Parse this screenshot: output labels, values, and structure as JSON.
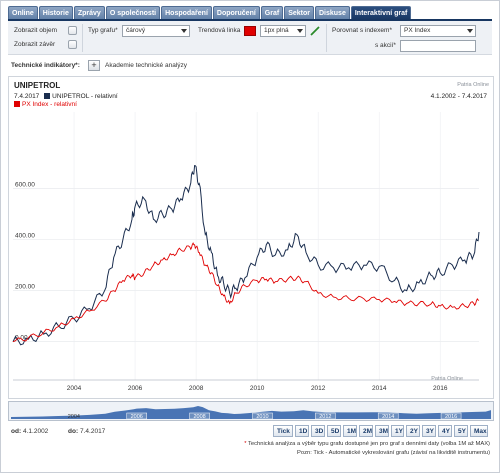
{
  "tabs": [
    {
      "label": "Online"
    },
    {
      "label": "Historie"
    },
    {
      "label": "Zprávy"
    },
    {
      "label": "O společnosti"
    },
    {
      "label": "Hospodaření"
    },
    {
      "label": "Doporučení"
    },
    {
      "label": "Graf"
    },
    {
      "label": "Sektor"
    },
    {
      "label": "Diskuse"
    },
    {
      "label": "Interaktivní graf"
    }
  ],
  "controls": {
    "show_volume_label": "Zobrazit objem",
    "show_close_label": "Zobrazit závěr",
    "chart_type_label": "Typ grafu*",
    "chart_type_value": "čárový",
    "trend_line_label": "Trendová linka",
    "trend_line_width": "1px plná",
    "compare_index_label": "Porovnat s indexem*",
    "compare_index_value": "PX Index",
    "compare_stock_label": "s akcií*",
    "compare_stock_value": ""
  },
  "tech": {
    "label": "Technické indikátory*:",
    "plus": "+",
    "analysis_label": "Akademie technické analýzy"
  },
  "chart": {
    "title": "UNIPETROL",
    "source_top": "Patria Online",
    "source_bottom": "Patria Online",
    "date_left": "7.4.2017",
    "date_range": "4.1.2002 - 7.4.2017",
    "colors": {
      "series1": "#1a2d4e",
      "series2": "#e00000",
      "nav_fill": "#2b5ea8"
    }
  },
  "chart_data": {
    "type": "line",
    "title": "UNIPETROL",
    "xlim": [
      2002,
      2017.27
    ],
    "ylim": [
      -150,
      900
    ],
    "y_ticks": [
      "0.00",
      "200.00",
      "400.00",
      "600.00"
    ],
    "x_ticks": [
      "2004",
      "2006",
      "2008",
      "2010",
      "2012",
      "2014",
      "2016"
    ],
    "grid": true,
    "legend": "top-left",
    "x": [
      2002.0,
      2002.5,
      2003.0,
      2003.5,
      2004.0,
      2004.5,
      2005.0,
      2005.3,
      2005.6,
      2005.9,
      2006.0,
      2006.3,
      2006.6,
      2006.9,
      2007.2,
      2007.5,
      2007.8,
      2007.95,
      2008.1,
      2008.3,
      2008.5,
      2008.7,
      2008.9,
      2009.1,
      2009.3,
      2009.6,
      2010.0,
      2010.3,
      2010.6,
      2011.0,
      2011.3,
      2011.6,
      2012.0,
      2012.5,
      2013.0,
      2013.5,
      2014.0,
      2014.5,
      2014.9,
      2015.3,
      2015.7,
      2016.0,
      2016.4,
      2016.8,
      2017.1,
      2017.27
    ],
    "series": [
      {
        "name": "UNIPETROL - relativní",
        "values": [
          0,
          10,
          30,
          60,
          90,
          130,
          200,
          330,
          400,
          480,
          530,
          560,
          480,
          500,
          520,
          560,
          610,
          690,
          620,
          420,
          350,
          260,
          230,
          190,
          210,
          250,
          330,
          380,
          340,
          360,
          420,
          350,
          300,
          290,
          290,
          300,
          295,
          240,
          200,
          230,
          260,
          270,
          300,
          320,
          340,
          430
        ]
      },
      {
        "name": "PX Index - relativní",
        "values": [
          0,
          15,
          35,
          60,
          90,
          120,
          160,
          200,
          240,
          260,
          250,
          270,
          300,
          320,
          340,
          360,
          370,
          380,
          350,
          300,
          270,
          220,
          180,
          150,
          190,
          220,
          240,
          245,
          235,
          245,
          250,
          235,
          190,
          175,
          170,
          168,
          165,
          158,
          150,
          150,
          148,
          140,
          135,
          140,
          150,
          162
        ]
      }
    ]
  },
  "navigator": {
    "years": [
      "2004",
      "2006",
      "2008",
      "2010",
      "2012",
      "2014",
      "2016"
    ]
  },
  "bottom": {
    "from_label": "od:",
    "from_value": "4.1.2002",
    "to_label": "do:",
    "to_value": "7.4.2017",
    "ranges": [
      "Tick",
      "1D",
      "3D",
      "5D",
      "1M",
      "2M",
      "3M",
      "1Y",
      "2Y",
      "3Y",
      "4Y",
      "5Y",
      "Max"
    ],
    "note1": "Technická analýza a výběr typu grafu dostupné jen pro graf s denními daty (volba 1M až MAX)",
    "note1_star": "*",
    "note2": "Pozn: Tick - Automatické vykreslování grafu (závisí na likviditě instrumentu)"
  }
}
